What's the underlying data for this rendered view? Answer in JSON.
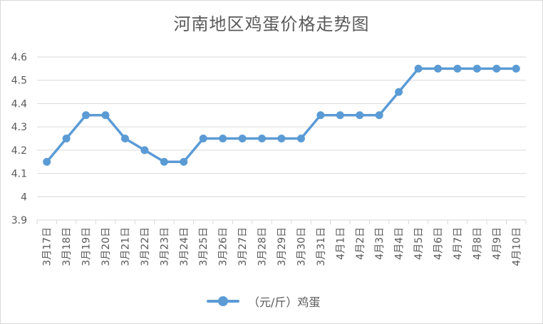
{
  "chart_data": {
    "type": "line",
    "title": "河南地区鸡蛋价格走势图",
    "xlabel": "",
    "ylabel": "",
    "categories": [
      "3月17日",
      "3月18日",
      "3月19日",
      "3月20日",
      "3月21日",
      "3月22日",
      "3月23日",
      "3月24日",
      "3月25日",
      "3月26日",
      "3月27日",
      "3月28日",
      "3月29日",
      "3月30日",
      "3月31日",
      "4月1日",
      "4月2日",
      "4月3日",
      "4月4日",
      "4月5日",
      "4月6日",
      "4月7日",
      "4月8日",
      "4月9日",
      "4月10日"
    ],
    "series": [
      {
        "name": "（元/斤）鸡蛋",
        "values": [
          4.15,
          4.25,
          4.35,
          4.35,
          4.25,
          4.2,
          4.15,
          4.15,
          4.25,
          4.25,
          4.25,
          4.25,
          4.25,
          4.25,
          4.35,
          4.35,
          4.35,
          4.35,
          4.45,
          4.55,
          4.55,
          4.55,
          4.55,
          4.55,
          4.55
        ]
      }
    ],
    "ylim": [
      3.9,
      4.6
    ],
    "yticks": [
      "3.9",
      "4",
      "4.1",
      "4.2",
      "4.3",
      "4.4",
      "4.5",
      "4.6"
    ],
    "grid": true,
    "legend": "bottom",
    "colors": {
      "series": "#5b9bd5",
      "grid": "#d9d9d9",
      "text": "#595959"
    }
  }
}
